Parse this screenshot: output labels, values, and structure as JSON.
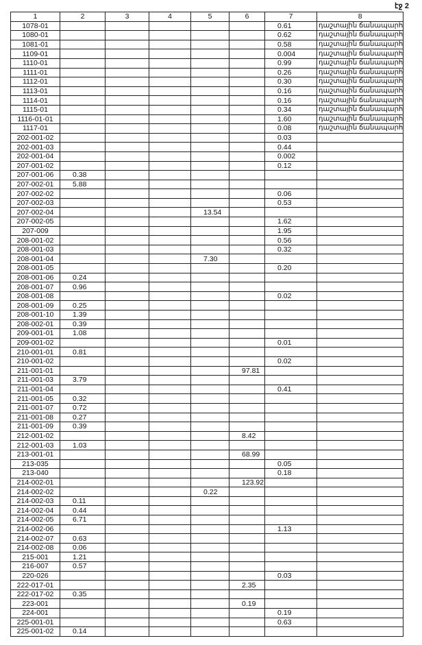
{
  "page_label": "էջ 2",
  "headers": [
    "1",
    "2",
    "3",
    "4",
    "5",
    "6",
    "7",
    "8"
  ],
  "rows": [
    [
      "1078-01",
      "",
      "",
      "",
      "",
      "",
      "0.61",
      "դաշտային ճանապարհ"
    ],
    [
      "1080-01",
      "",
      "",
      "",
      "",
      "",
      "0.62",
      "դաշտային ճանապարհ"
    ],
    [
      "1081-01",
      "",
      "",
      "",
      "",
      "",
      "0.58",
      "դաշտային ճանապարհ"
    ],
    [
      "1109-01",
      "",
      "",
      "",
      "",
      "",
      "0.004",
      "դաշտային ճանապարհ"
    ],
    [
      "1110-01",
      "",
      "",
      "",
      "",
      "",
      "0.99",
      "դաշտային ճանապարհ"
    ],
    [
      "1111-01",
      "",
      "",
      "",
      "",
      "",
      "0.26",
      "դաշտային ճանապարհ"
    ],
    [
      "1112-01",
      "",
      "",
      "",
      "",
      "",
      "0.30",
      "դաշտային ճանապարհ"
    ],
    [
      "1113-01",
      "",
      "",
      "",
      "",
      "",
      "0.16",
      "դաշտային ճանապարհ"
    ],
    [
      "1114-01",
      "",
      "",
      "",
      "",
      "",
      "0.16",
      "դաշտային ճանապարհ"
    ],
    [
      "1115-01",
      "",
      "",
      "",
      "",
      "",
      "0.34",
      "դաշտային ճանապարհ"
    ],
    [
      "1116-01-01",
      "",
      "",
      "",
      "",
      "",
      "1.60",
      "դաշտային ճանապարհ"
    ],
    [
      "1117-01",
      "",
      "",
      "",
      "",
      "",
      "0.08",
      "դաշտային ճանապարհ"
    ],
    [
      "202-001-02",
      "",
      "",
      "",
      "",
      "",
      "0.03",
      ""
    ],
    [
      "202-001-03",
      "",
      "",
      "",
      "",
      "",
      "0.44",
      ""
    ],
    [
      "202-001-04",
      "",
      "",
      "",
      "",
      "",
      "0.002",
      ""
    ],
    [
      "207-001-02",
      "",
      "",
      "",
      "",
      "",
      "0.12",
      ""
    ],
    [
      "207-001-06",
      "0.38",
      "",
      "",
      "",
      "",
      "",
      ""
    ],
    [
      "207-002-01",
      "5.88",
      "",
      "",
      "",
      "",
      "",
      ""
    ],
    [
      "207-002-02",
      "",
      "",
      "",
      "",
      "",
      "0.06",
      ""
    ],
    [
      "207-002-03",
      "",
      "",
      "",
      "",
      "",
      "0.53",
      ""
    ],
    [
      "207-002-04",
      "",
      "",
      "",
      "13.54",
      "",
      "",
      ""
    ],
    [
      "207-002-05",
      "",
      "",
      "",
      "",
      "",
      "1.62",
      ""
    ],
    [
      "207-009",
      "",
      "",
      "",
      "",
      "",
      "1.95",
      ""
    ],
    [
      "208-001-02",
      "",
      "",
      "",
      "",
      "",
      "0.56",
      ""
    ],
    [
      "208-001-03",
      "",
      "",
      "",
      "",
      "",
      "0.32",
      ""
    ],
    [
      "208-001-04",
      "",
      "",
      "",
      "7.30",
      "",
      "",
      ""
    ],
    [
      "208-001-05",
      "",
      "",
      "",
      "",
      "",
      "0.20",
      ""
    ],
    [
      "208-001-06",
      "0.24",
      "",
      "",
      "",
      "",
      "",
      ""
    ],
    [
      "208-001-07",
      "0.96",
      "",
      "",
      "",
      "",
      "",
      ""
    ],
    [
      "208-001-08",
      "",
      "",
      "",
      "",
      "",
      "0.02",
      ""
    ],
    [
      "208-001-09",
      "0.25",
      "",
      "",
      "",
      "",
      "",
      ""
    ],
    [
      "208-001-10",
      "1.39",
      "",
      "",
      "",
      "",
      "",
      ""
    ],
    [
      "208-002-01",
      "0.39",
      "",
      "",
      "",
      "",
      "",
      ""
    ],
    [
      "209-001-01",
      "1.08",
      "",
      "",
      "",
      "",
      "",
      ""
    ],
    [
      "209-001-02",
      "",
      "",
      "",
      "",
      "",
      "0.01",
      ""
    ],
    [
      "210-001-01",
      "0.81",
      "",
      "",
      "",
      "",
      "",
      ""
    ],
    [
      "210-001-02",
      "",
      "",
      "",
      "",
      "",
      "0.02",
      ""
    ],
    [
      "211-001-01",
      "",
      "",
      "",
      "",
      "97.81",
      "",
      ""
    ],
    [
      "211-001-03",
      "3.79",
      "",
      "",
      "",
      "",
      "",
      ""
    ],
    [
      "211-001-04",
      "",
      "",
      "",
      "",
      "",
      "0.41",
      ""
    ],
    [
      "211-001-05",
      "0.32",
      "",
      "",
      "",
      "",
      "",
      ""
    ],
    [
      "211-001-07",
      "0.72",
      "",
      "",
      "",
      "",
      "",
      ""
    ],
    [
      "211-001-08",
      "0.27",
      "",
      "",
      "",
      "",
      "",
      ""
    ],
    [
      "211-001-09",
      "0.39",
      "",
      "",
      "",
      "",
      "",
      ""
    ],
    [
      "212-001-02",
      "",
      "",
      "",
      "",
      "8.42",
      "",
      ""
    ],
    [
      "212-001-03",
      "1.03",
      "",
      "",
      "",
      "",
      "",
      ""
    ],
    [
      "213-001-01",
      "",
      "",
      "",
      "",
      "68.99",
      "",
      ""
    ],
    [
      "213-035",
      "",
      "",
      "",
      "",
      "",
      "0.05",
      ""
    ],
    [
      "213-040",
      "",
      "",
      "",
      "",
      "",
      "0.18",
      ""
    ],
    [
      "214-002-01",
      "",
      "",
      "",
      "",
      "123.92",
      "",
      ""
    ],
    [
      "214-002-02",
      "",
      "",
      "",
      "0.22",
      "",
      "",
      ""
    ],
    [
      "214-002-03",
      "0.11",
      "",
      "",
      "",
      "",
      "",
      ""
    ],
    [
      "214-002-04",
      "0.44",
      "",
      "",
      "",
      "",
      "",
      ""
    ],
    [
      "214-002-05",
      "6.71",
      "",
      "",
      "",
      "",
      "",
      ""
    ],
    [
      "214-002-06",
      "",
      "",
      "",
      "",
      "",
      "1.13",
      ""
    ],
    [
      "214-002-07",
      "0.63",
      "",
      "",
      "",
      "",
      "",
      ""
    ],
    [
      "214-002-08",
      "0.06",
      "",
      "",
      "",
      "",
      "",
      ""
    ],
    [
      "215-001",
      "1.21",
      "",
      "",
      "",
      "",
      "",
      ""
    ],
    [
      "216-007",
      "0.57",
      "",
      "",
      "",
      "",
      "",
      ""
    ],
    [
      "220-026",
      "",
      "",
      "",
      "",
      "",
      "0.03",
      ""
    ],
    [
      "222-017-01",
      "",
      "",
      "",
      "",
      "2.35",
      "",
      ""
    ],
    [
      "222-017-02",
      "0.35",
      "",
      "",
      "",
      "",
      "",
      ""
    ],
    [
      "223-001",
      "",
      "",
      "",
      "",
      "0.19",
      "",
      ""
    ],
    [
      "224-001",
      "",
      "",
      "",
      "",
      "",
      "0.19",
      ""
    ],
    [
      "225-001-01",
      "",
      "",
      "",
      "",
      "",
      "0.63",
      ""
    ],
    [
      "225-001-02",
      "0.14",
      "",
      "",
      "",
      "",
      "",
      ""
    ]
  ]
}
